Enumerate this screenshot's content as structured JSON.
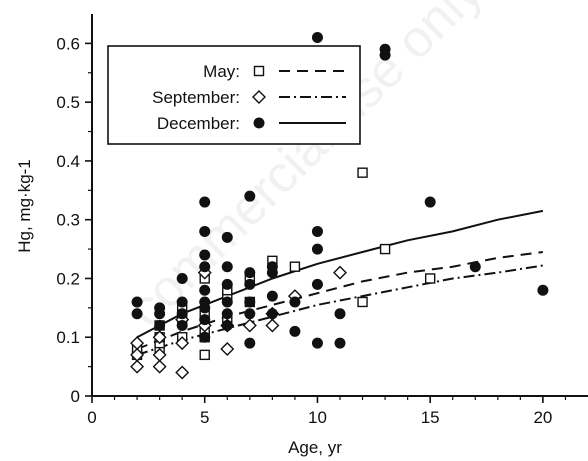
{
  "chart_data": {
    "type": "scatter",
    "xlabel": "Age, yr",
    "ylabel": "Hg, mg·kg-1",
    "xlim": [
      0,
      22
    ],
    "ylim": [
      0,
      0.65
    ],
    "xticks": [
      0,
      5,
      10,
      15,
      20
    ],
    "xtick_labels": [
      "0",
      "5",
      "10",
      "15",
      "20"
    ],
    "yticks": [
      0,
      0.1,
      0.2,
      0.3,
      0.4,
      0.5,
      0.6
    ],
    "ytick_labels": [
      "0",
      "0.1",
      "0.2",
      "0.3",
      "0.4",
      "0.5",
      "0.6"
    ],
    "grid": false,
    "legend_position": "top-left",
    "watermark": "commercial use only",
    "series": [
      {
        "name": "May:",
        "marker": "open-square",
        "line_style": "dashed",
        "points": [
          [
            2,
            0.07
          ],
          [
            2,
            0.08
          ],
          [
            3,
            0.08
          ],
          [
            3,
            0.09
          ],
          [
            3,
            0.1
          ],
          [
            3,
            0.12
          ],
          [
            4,
            0.1
          ],
          [
            4,
            0.13
          ],
          [
            4,
            0.15
          ],
          [
            5,
            0.07
          ],
          [
            5,
            0.1
          ],
          [
            5,
            0.11
          ],
          [
            5,
            0.14
          ],
          [
            5,
            0.2
          ],
          [
            6,
            0.13
          ],
          [
            6,
            0.17
          ],
          [
            6,
            0.18
          ],
          [
            7,
            0.16
          ],
          [
            7,
            0.2
          ],
          [
            8,
            0.23
          ],
          [
            9,
            0.22
          ],
          [
            12,
            0.16
          ],
          [
            12,
            0.38
          ],
          [
            13,
            0.25
          ],
          [
            15,
            0.2
          ]
        ],
        "fit": [
          [
            2,
            0.08
          ],
          [
            4,
            0.11
          ],
          [
            6,
            0.135
          ],
          [
            8,
            0.155
          ],
          [
            10,
            0.175
          ],
          [
            12,
            0.195
          ],
          [
            14,
            0.21
          ],
          [
            16,
            0.22
          ],
          [
            18,
            0.235
          ],
          [
            20,
            0.245
          ]
        ]
      },
      {
        "name": "September:",
        "marker": "open-diamond",
        "line_style": "dash-dot",
        "points": [
          [
            2,
            0.05
          ],
          [
            2,
            0.07
          ],
          [
            2,
            0.09
          ],
          [
            3,
            0.05
          ],
          [
            3,
            0.07
          ],
          [
            3,
            0.1
          ],
          [
            4,
            0.04
          ],
          [
            4,
            0.09
          ],
          [
            4,
            0.13
          ],
          [
            5,
            0.12
          ],
          [
            5,
            0.21
          ],
          [
            6,
            0.08
          ],
          [
            6,
            0.12
          ],
          [
            7,
            0.12
          ],
          [
            8,
            0.12
          ],
          [
            8,
            0.14
          ],
          [
            9,
            0.17
          ],
          [
            11,
            0.21
          ]
        ],
        "fit": [
          [
            2,
            0.07
          ],
          [
            4,
            0.095
          ],
          [
            6,
            0.115
          ],
          [
            8,
            0.135
          ],
          [
            10,
            0.155
          ],
          [
            12,
            0.17
          ],
          [
            14,
            0.185
          ],
          [
            16,
            0.2
          ],
          [
            18,
            0.21
          ],
          [
            20,
            0.222
          ]
        ]
      },
      {
        "name": "December:",
        "marker": "filled-circle",
        "line_style": "solid",
        "points": [
          [
            2,
            0.14
          ],
          [
            2,
            0.16
          ],
          [
            3,
            0.12
          ],
          [
            3,
            0.14
          ],
          [
            3,
            0.15
          ],
          [
            4,
            0.12
          ],
          [
            4,
            0.14
          ],
          [
            4,
            0.16
          ],
          [
            4,
            0.2
          ],
          [
            5,
            0.1
          ],
          [
            5,
            0.13
          ],
          [
            5,
            0.15
          ],
          [
            5,
            0.16
          ],
          [
            5,
            0.18
          ],
          [
            5,
            0.22
          ],
          [
            5,
            0.24
          ],
          [
            5,
            0.28
          ],
          [
            5,
            0.33
          ],
          [
            6,
            0.12
          ],
          [
            6,
            0.14
          ],
          [
            6,
            0.16
          ],
          [
            6,
            0.19
          ],
          [
            6,
            0.22
          ],
          [
            6,
            0.27
          ],
          [
            7,
            0.09
          ],
          [
            7,
            0.14
          ],
          [
            7,
            0.16
          ],
          [
            7,
            0.19
          ],
          [
            7,
            0.21
          ],
          [
            7,
            0.34
          ],
          [
            8,
            0.14
          ],
          [
            8,
            0.17
          ],
          [
            8,
            0.21
          ],
          [
            8,
            0.22
          ],
          [
            9,
            0.11
          ],
          [
            9,
            0.16
          ],
          [
            10,
            0.09
          ],
          [
            10,
            0.19
          ],
          [
            10,
            0.25
          ],
          [
            10,
            0.28
          ],
          [
            10,
            0.61
          ],
          [
            11,
            0.09
          ],
          [
            11,
            0.14
          ],
          [
            13,
            0.58
          ],
          [
            13,
            0.59
          ],
          [
            15,
            0.33
          ],
          [
            17,
            0.22
          ],
          [
            20,
            0.18
          ]
        ],
        "fit": [
          [
            2,
            0.1
          ],
          [
            4,
            0.14
          ],
          [
            6,
            0.17
          ],
          [
            8,
            0.2
          ],
          [
            10,
            0.225
          ],
          [
            12,
            0.245
          ],
          [
            14,
            0.265
          ],
          [
            16,
            0.28
          ],
          [
            18,
            0.3
          ],
          [
            20,
            0.315
          ]
        ]
      }
    ]
  }
}
